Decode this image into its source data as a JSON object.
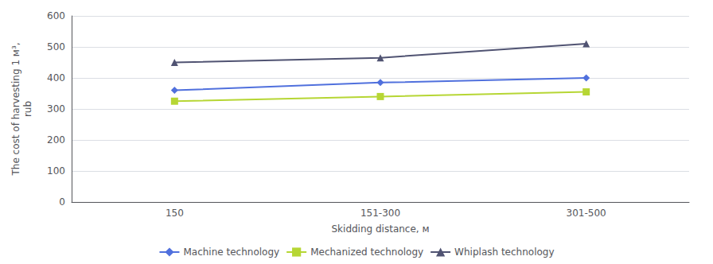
{
  "chart_data": {
    "type": "line",
    "categories": [
      "150",
      "151-300",
      "301-500"
    ],
    "series": [
      {
        "name": "Machine technology",
        "values": [
          360,
          385,
          400
        ],
        "marker": "diamond"
      },
      {
        "name": "Mechanized technology",
        "values": [
          325,
          340,
          355
        ],
        "marker": "square"
      },
      {
        "name": "Whiplash technology",
        "values": [
          450,
          465,
          510
        ],
        "marker": "triangle"
      }
    ],
    "xlabel": "Skidding distance, м",
    "ylabel": "The cost of harvesting 1 м³,\nrub",
    "ylim": [
      0,
      600
    ],
    "yticks": [
      0,
      100,
      200,
      300,
      400,
      500,
      600
    ],
    "grid": true,
    "legend": "bottom"
  }
}
